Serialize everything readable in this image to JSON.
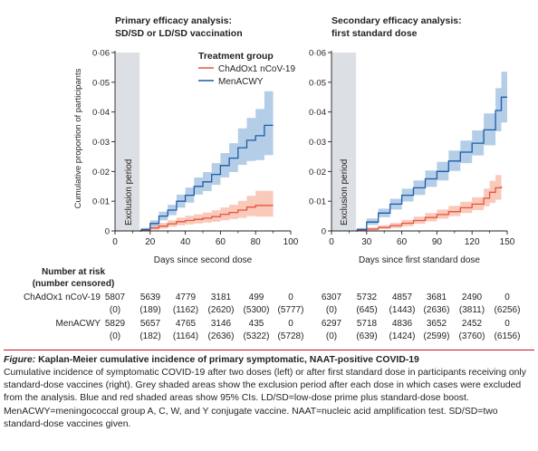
{
  "chart_data": [
    {
      "type": "line",
      "title": "Primary efficacy analysis:",
      "subtitle": "SD/SD or LD/SD vaccination",
      "xlabel": "Days since second dose",
      "ylabel": "Cumulative proportion of participants",
      "xlim": [
        0,
        100
      ],
      "ylim": [
        0,
        0.06
      ],
      "xticks": [
        "0",
        "20",
        "40",
        "60",
        "80",
        "100"
      ],
      "yticks": [
        "0",
        "0·01",
        "0·02",
        "0·03",
        "0·04",
        "0·05",
        "0·06"
      ],
      "exclusion_period": {
        "label": "Exclusion period",
        "x": [
          0,
          14
        ]
      },
      "legend": {
        "title": "Treatment group",
        "placement": "top-right"
      },
      "series": [
        {
          "name": "ChAdOx1 nCoV-19",
          "color": "#e8533f",
          "band_color": "#f7b7a3",
          "x": [
            15,
            20,
            25,
            30,
            35,
            40,
            45,
            50,
            55,
            60,
            65,
            70,
            75,
            80,
            85,
            90
          ],
          "y": [
            0.0002,
            0.001,
            0.0016,
            0.0024,
            0.0031,
            0.0035,
            0.0039,
            0.0043,
            0.0048,
            0.0056,
            0.0062,
            0.007,
            0.008,
            0.0086,
            0.0086,
            0.0086
          ],
          "ci_low": [
            0,
            0.0004,
            0.0008,
            0.0014,
            0.0019,
            0.0022,
            0.0025,
            0.0028,
            0.0031,
            0.0036,
            0.004,
            0.0044,
            0.005,
            0.0048,
            0.0048,
            0.0048
          ],
          "ci_high": [
            0.0008,
            0.002,
            0.0027,
            0.0036,
            0.0045,
            0.0051,
            0.0056,
            0.0062,
            0.0069,
            0.0079,
            0.0088,
            0.0101,
            0.0118,
            0.0135,
            0.0135,
            0.0135
          ]
        },
        {
          "name": "MenACWY",
          "color": "#1f5aa6",
          "band_color": "#9bbde0",
          "x": [
            15,
            20,
            25,
            30,
            35,
            40,
            45,
            50,
            55,
            60,
            65,
            70,
            75,
            80,
            85,
            90
          ],
          "y": [
            0.0005,
            0.0025,
            0.005,
            0.007,
            0.01,
            0.012,
            0.015,
            0.0165,
            0.019,
            0.022,
            0.0245,
            0.028,
            0.0305,
            0.032,
            0.0355,
            0.0355
          ],
          "ci_low": [
            0,
            0.0015,
            0.0036,
            0.0053,
            0.0078,
            0.0095,
            0.0122,
            0.0134,
            0.0155,
            0.018,
            0.0198,
            0.0222,
            0.0235,
            0.0238,
            0.0255,
            0.0255
          ],
          "ci_high": [
            0.001,
            0.0036,
            0.0065,
            0.0088,
            0.0122,
            0.0146,
            0.018,
            0.0198,
            0.0228,
            0.0262,
            0.0295,
            0.0345,
            0.038,
            0.041,
            0.047,
            0.047
          ]
        }
      ]
    },
    {
      "type": "line",
      "title": "Secondary efficacy analysis:",
      "subtitle": "first standard dose",
      "xlabel": "Days since first standard dose",
      "ylabel": "",
      "xlim": [
        0,
        150
      ],
      "ylim": [
        0,
        0.06
      ],
      "xticks": [
        "0",
        "30",
        "60",
        "90",
        "120",
        "150"
      ],
      "yticks": [
        "0",
        "0·01",
        "0·02",
        "0·03",
        "0·04",
        "0·05",
        "0·06"
      ],
      "exclusion_period": {
        "label": "Exclusion period",
        "x": [
          0,
          21
        ]
      },
      "series": [
        {
          "name": "ChAdOx1 nCoV-19",
          "color": "#e8533f",
          "band_color": "#f7b7a3",
          "x": [
            22,
            30,
            40,
            50,
            60,
            70,
            80,
            90,
            100,
            110,
            120,
            130,
            135,
            140,
            145
          ],
          "y": [
            0.0002,
            0.0006,
            0.0012,
            0.0018,
            0.0026,
            0.0035,
            0.0045,
            0.0055,
            0.0065,
            0.0078,
            0.009,
            0.011,
            0.013,
            0.0145,
            0.015
          ],
          "ci_low": [
            0,
            0.0002,
            0.0006,
            0.001,
            0.0016,
            0.0024,
            0.0032,
            0.0041,
            0.005,
            0.006,
            0.007,
            0.0083,
            0.0094,
            0.0105,
            0.011
          ],
          "ci_high": [
            0.0006,
            0.0012,
            0.0019,
            0.0027,
            0.0037,
            0.0048,
            0.006,
            0.0072,
            0.0084,
            0.0098,
            0.0113,
            0.0142,
            0.0168,
            0.0188,
            0.0195
          ]
        },
        {
          "name": "MenACWY",
          "color": "#1f5aa6",
          "band_color": "#9bbde0",
          "x": [
            22,
            30,
            40,
            50,
            60,
            70,
            80,
            90,
            100,
            110,
            120,
            130,
            140,
            145,
            150
          ],
          "y": [
            0.0005,
            0.003,
            0.006,
            0.009,
            0.012,
            0.0145,
            0.0175,
            0.02,
            0.0235,
            0.0265,
            0.0295,
            0.034,
            0.0405,
            0.045,
            0.045
          ],
          "ci_low": [
            0,
            0.002,
            0.0046,
            0.0072,
            0.0099,
            0.0121,
            0.0148,
            0.017,
            0.0202,
            0.0228,
            0.0254,
            0.0288,
            0.0335,
            0.0365,
            0.0365
          ],
          "ci_high": [
            0.001,
            0.0042,
            0.0075,
            0.0108,
            0.0142,
            0.017,
            0.0203,
            0.0232,
            0.027,
            0.0304,
            0.0338,
            0.0395,
            0.048,
            0.0535,
            0.0535
          ]
        }
      ]
    }
  ],
  "risk_table": {
    "header_line1": "Number at risk",
    "header_line2": "(number censored)",
    "rows": [
      {
        "group": "ChAdOx1 nCoV-19",
        "left_at_risk": [
          "5807",
          "5639",
          "4779",
          "3181",
          "499",
          "0"
        ],
        "left_censored": [
          "(0)",
          "(189)",
          "(1162)",
          "(2620)",
          "(5300)",
          "(5777)"
        ],
        "right_at_risk": [
          "6307",
          "5732",
          "4857",
          "3681",
          "2490",
          "0"
        ],
        "right_censored": [
          "(0)",
          "(645)",
          "(1443)",
          "(2636)",
          "(3811)",
          "(6256)"
        ]
      },
      {
        "group": "MenACWY",
        "left_at_risk": [
          "5829",
          "5657",
          "4765",
          "3146",
          "435",
          "0"
        ],
        "left_censored": [
          "(0)",
          "(182)",
          "(1164)",
          "(2636)",
          "(5322)",
          "(5728)"
        ],
        "right_at_risk": [
          "6297",
          "5718",
          "4836",
          "3652",
          "2452",
          "0"
        ],
        "right_censored": [
          "(0)",
          "(639)",
          "(1424)",
          "(2599)",
          "(3760)",
          "(6156)"
        ]
      }
    ]
  },
  "caption": {
    "figure_label": "Figure:",
    "title": " Kaplan-Meier cumulative incidence of primary symptomatic, NAAT-positive COVID-19",
    "body": "Cumulative incidence of symptomatic COVID-19 after two doses (left) or after first standard dose in participants receiving only standard-dose vaccines (right). Grey shaded areas show the exclusion period after each dose in which cases were excluded from the analysis. Blue and red shaded areas show 95% CIs. LD/SD=low-dose prime plus standard-dose boost. MenACWY=meningococcal group A, C, W, and Y conjugate vaccine. NAAT=nucleic acid amplification test. SD/SD=two standard-dose vaccines given."
  }
}
